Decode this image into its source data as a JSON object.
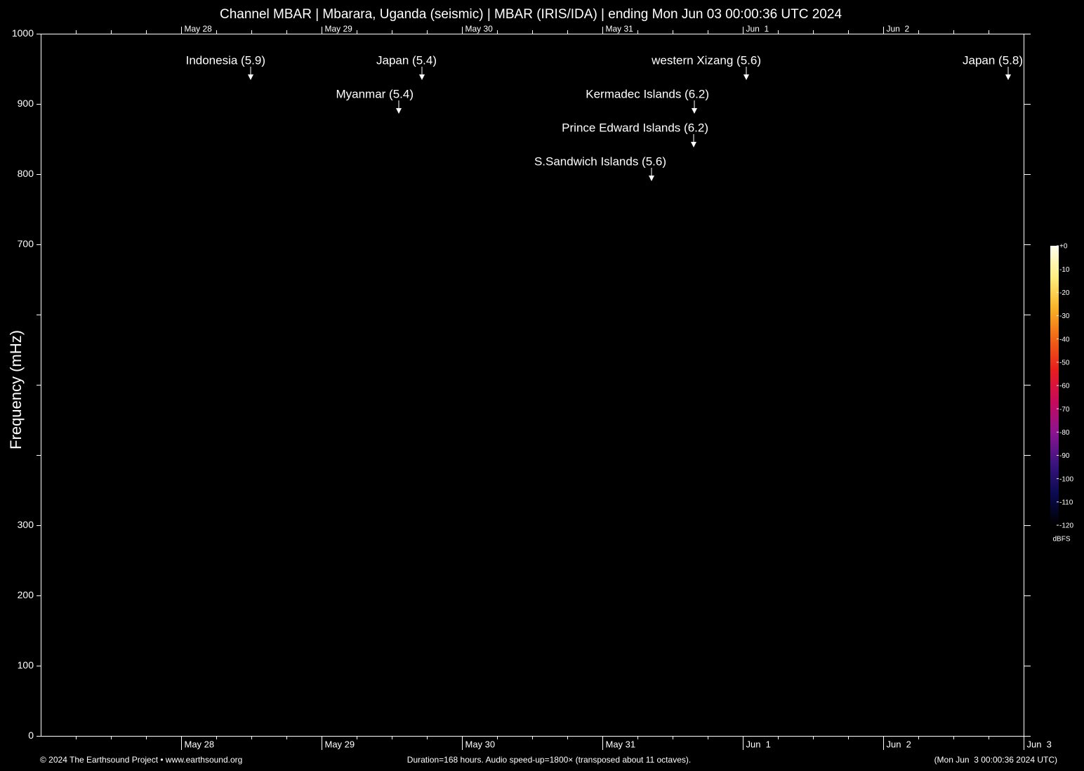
{
  "chart_data": {
    "type": "spectrogram",
    "title": "Channel MBAR | Mbarara, Uganda (seismic) | MBAR (IRIS/IDA) | ending Mon Jun 03 00:00:36 UTC 2024",
    "y_label": "Frequency (mHz)",
    "ylim": [
      0,
      1000
    ],
    "yticks": [
      0,
      100,
      200,
      300,
      {
        "value": 400,
        "label": null
      },
      {
        "value": 500,
        "label": null
      },
      {
        "value": 600,
        "label": null
      },
      700,
      800,
      900,
      1000
    ],
    "xlim": [
      0,
      7
    ],
    "xticks": [
      {
        "value": 1,
        "label": "May 28"
      },
      {
        "value": 2,
        "label": "May 29"
      },
      {
        "value": 3,
        "label": "May 30"
      },
      {
        "value": 4,
        "label": "May 31"
      },
      {
        "value": 5,
        "label": "Jun  1"
      },
      {
        "value": 6,
        "label": "Jun  2"
      },
      {
        "value": 7,
        "label": "Jun  3"
      }
    ],
    "events": [
      {
        "label": "Indonesia (5.9)",
        "x": 1.495
      },
      {
        "label": "Japan (5.4)",
        "x": 2.715
      },
      {
        "label": "Myanmar (5.4)",
        "x": 2.55
      },
      {
        "label": "western Xizang (5.6)",
        "x": 5.025
      },
      {
        "label": "Kermadec Islands (6.2)",
        "x": 4.655
      },
      {
        "label": "Prince Edward Islands (6.2)",
        "x": 4.65
      },
      {
        "label": "S.Sandwich Islands (5.6)",
        "x": 4.35
      },
      {
        "label": "Japan (5.8)",
        "x": 6.89
      }
    ],
    "colorbar": {
      "clim": [
        -120,
        0
      ],
      "ticks": [
        {
          "value": 0,
          "label": "+0"
        },
        -10,
        -20,
        -30,
        -40,
        -50,
        -60,
        -70,
        -80,
        -90,
        -100,
        -110,
        -120
      ],
      "label": "dBFS",
      "colors": [
        "#000000",
        "#0a0a50",
        "#3c1480",
        "#8c1490",
        "#c80a5a",
        "#e81e1e",
        "#f06414",
        "#f8b428",
        "#fff080",
        "#fffff0"
      ]
    },
    "footer_left": "© 2024 The Earthsound Project • www.earthsound.org",
    "footer_center": "Duration=168 hours. Audio speed-up=1800× (transposed about 11 octaves).",
    "footer_right": "(Mon Jun  3 00:00:36 2024 UTC)"
  }
}
